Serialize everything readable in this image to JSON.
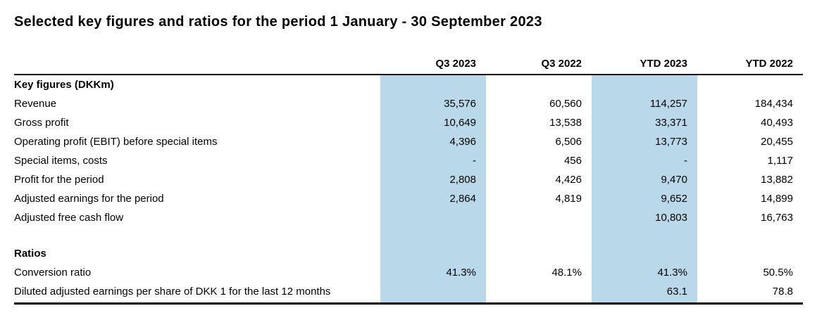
{
  "page": {
    "title": "Selected key figures and ratios for the period 1 January - 30 September 2023"
  },
  "table": {
    "highlight_color": "#b9d8e9",
    "column_headers": [
      "Q3 2023",
      "Q3 2022",
      "YTD 2023",
      "YTD 2022"
    ],
    "section1_header": "Key figures (DKKm)",
    "section2_header": "Ratios",
    "rows": [
      {
        "label": "Revenue",
        "values": [
          "35,576",
          "60,560",
          "114,257",
          "184,434"
        ]
      },
      {
        "label": "Gross profit",
        "values": [
          "10,649",
          "13,538",
          "33,371",
          "40,493"
        ]
      },
      {
        "label": "Operating profit (EBIT) before special items",
        "values": [
          "4,396",
          "6,506",
          "13,773",
          "20,455"
        ]
      },
      {
        "label": "Special items, costs",
        "values": [
          "-",
          "456",
          "-",
          "1,117"
        ]
      },
      {
        "label": "Profit for the period",
        "values": [
          "2,808",
          "4,426",
          "9,470",
          "13,882"
        ]
      },
      {
        "label": "Adjusted earnings for the period",
        "values": [
          "2,864",
          "4,819",
          "9,652",
          "14,899"
        ]
      },
      {
        "label": "Adjusted free cash flow",
        "values": [
          "",
          "",
          "10,803",
          "16,763"
        ]
      },
      {
        "label": "Conversion ratio",
        "values": [
          "41.3%",
          "48.1%",
          "41.3%",
          "50.5%"
        ]
      },
      {
        "label": "Diluted adjusted earnings per share of DKK 1 for the last 12 months",
        "values": [
          "",
          "",
          "63.1",
          "78.8"
        ]
      }
    ]
  }
}
